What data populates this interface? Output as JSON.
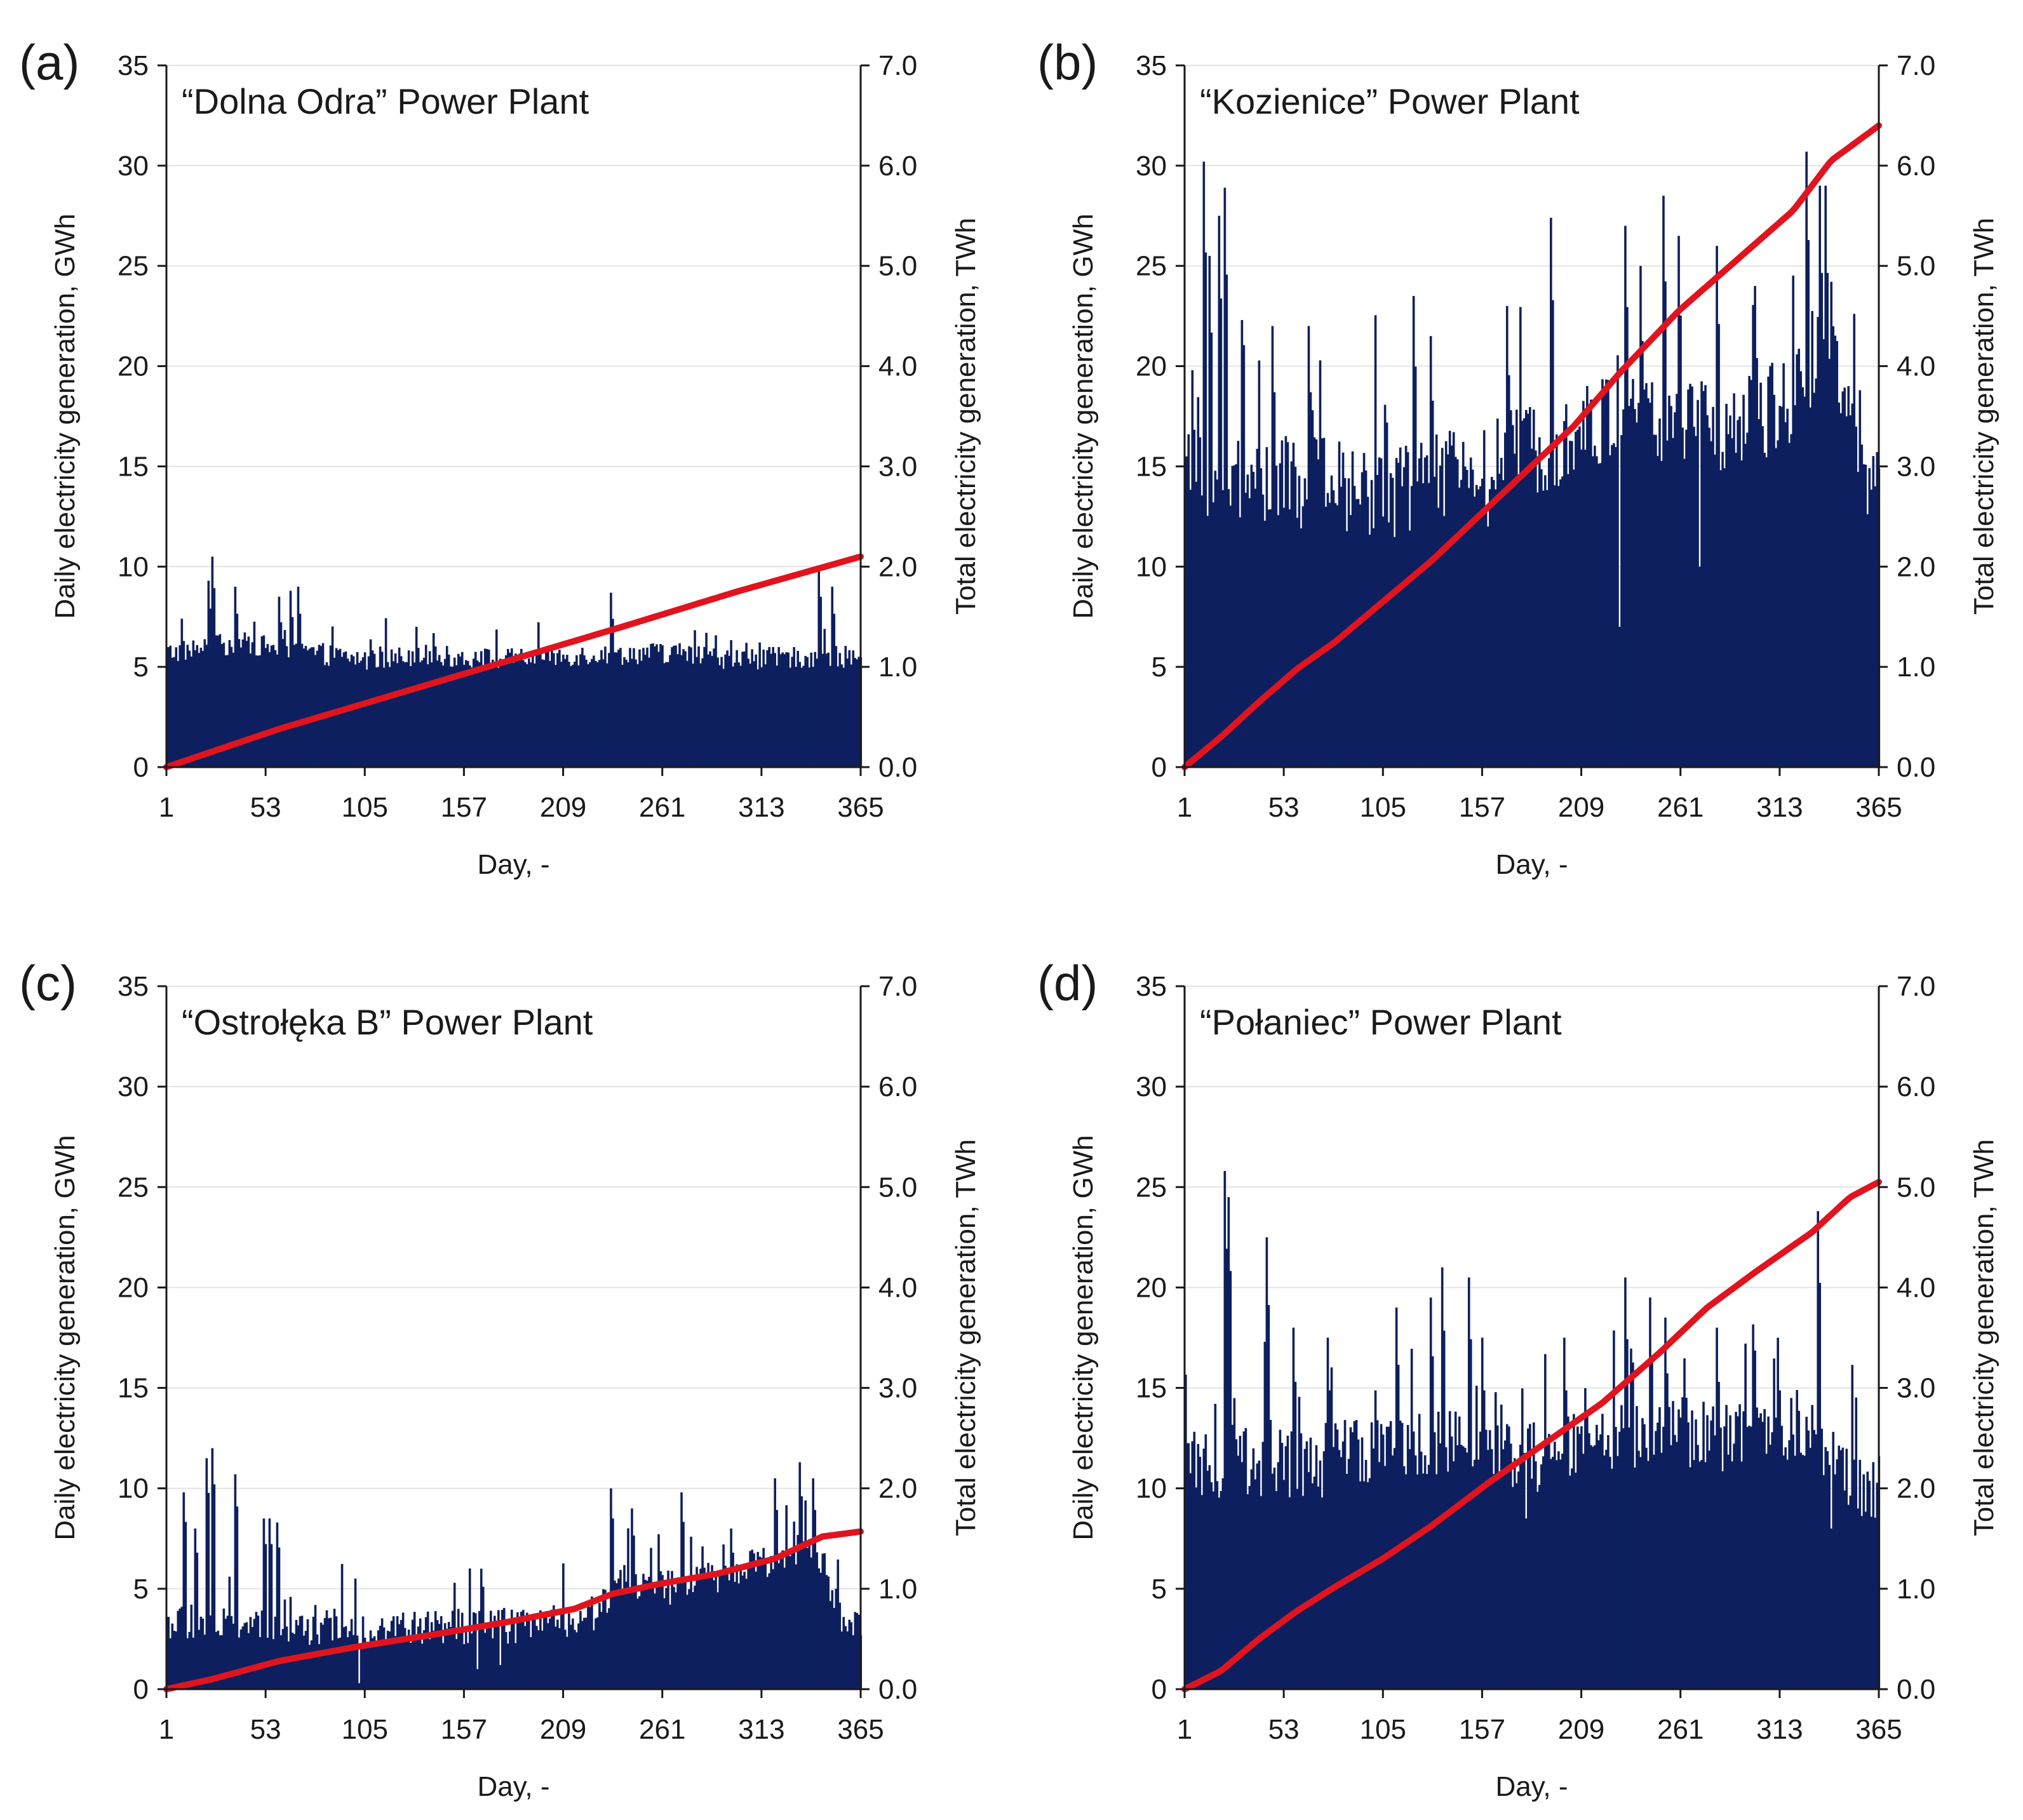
{
  "colors": {
    "bar": "#0d1f5e",
    "line": "#e0141e",
    "axis": "#1a1a1a",
    "grid": "#e4e4e4"
  },
  "chart_data": [
    {
      "panel_label": "(a)",
      "title": "“Dolna Odra” Power Plant",
      "type": "bar",
      "xlabel": "Day, -",
      "ylabel": "Daily electricity generation, GWh",
      "y2label": "Total electricity generation, TWh",
      "xlim": [
        1,
        365
      ],
      "x_ticks": [
        "1",
        "53",
        "105",
        "157",
        "209",
        "261",
        "313",
        "365"
      ],
      "ylim": [
        0,
        35
      ],
      "y_ticks": [
        "0",
        "5",
        "10",
        "15",
        "20",
        "25",
        "30",
        "35"
      ],
      "y2lim": [
        0,
        7.0
      ],
      "y2_ticks": [
        "0.0",
        "1.0",
        "2.0",
        "3.0",
        "4.0",
        "5.0",
        "6.0",
        "7.0"
      ],
      "grid": true,
      "daily_profile": {
        "base": [
          [
            1,
            5.7
          ],
          [
            40,
            6.2
          ],
          [
            70,
            5.8
          ],
          [
            110,
            5.3
          ],
          [
            130,
            5.6
          ],
          [
            150,
            5.5
          ],
          [
            180,
            5.4
          ],
          [
            220,
            5.6
          ],
          [
            260,
            5.7
          ],
          [
            300,
            5.4
          ],
          [
            340,
            5.5
          ],
          [
            365,
            5.5
          ]
        ],
        "noise": 0.55,
        "spikes": [
          [
            23,
            9.3
          ],
          [
            25,
            10.5
          ],
          [
            37,
            9.0
          ],
          [
            60,
            8.5
          ],
          [
            66,
            8.8
          ],
          [
            70,
            9.0
          ],
          [
            132,
            7.0
          ],
          [
            234,
            8.7
          ],
          [
            305,
            6.2
          ],
          [
            343,
            10.0
          ],
          [
            350,
            9.0
          ]
        ],
        "dips": []
      },
      "series": [
        {
          "name": "Daily electricity generation",
          "axis": "left",
          "type": "bar"
        },
        {
          "name": "Total electricity generation",
          "axis": "right",
          "type": "line",
          "points": [
            [
              1,
              0.0
            ],
            [
              60,
              0.38
            ],
            [
              120,
              0.72
            ],
            [
              180,
              1.06
            ],
            [
              240,
              1.4
            ],
            [
              300,
              1.75
            ],
            [
              365,
              2.1
            ]
          ]
        }
      ]
    },
    {
      "panel_label": "(b)",
      "title": "“Kozienice” Power Plant",
      "type": "bar",
      "xlabel": "Day, -",
      "ylabel": "Daily electricity generation, GWh",
      "y2label": "Total electricity generation, TWh",
      "xlim": [
        1,
        365
      ],
      "x_ticks": [
        "1",
        "53",
        "105",
        "157",
        "209",
        "261",
        "313",
        "365"
      ],
      "ylim": [
        0,
        35
      ],
      "y_ticks": [
        "0",
        "5",
        "10",
        "15",
        "20",
        "25",
        "30",
        "35"
      ],
      "y2lim": [
        0,
        7.0
      ],
      "y2_ticks": [
        "0.0",
        "1.0",
        "2.0",
        "3.0",
        "4.0",
        "5.0",
        "6.0",
        "7.0"
      ],
      "grid": true,
      "daily_profile": {
        "base": [
          [
            1,
            14.5
          ],
          [
            40,
            14.2
          ],
          [
            80,
            14.0
          ],
          [
            110,
            13.8
          ],
          [
            140,
            14.5
          ],
          [
            170,
            15.5
          ],
          [
            200,
            16.5
          ],
          [
            230,
            17.5
          ],
          [
            260,
            17.0
          ],
          [
            290,
            17.0
          ],
          [
            320,
            18.5
          ],
          [
            340,
            22
          ],
          [
            355,
            14.5
          ],
          [
            365,
            13.5
          ]
        ],
        "noise": 2.4,
        "spikes": [
          [
            5,
            19.8
          ],
          [
            11,
            30.2
          ],
          [
            14,
            25.5
          ],
          [
            19,
            27.5
          ],
          [
            22,
            28.9
          ],
          [
            31,
            22.3
          ],
          [
            47,
            22.0
          ],
          [
            66,
            22.0
          ],
          [
            121,
            23.5
          ],
          [
            130,
            21.5
          ],
          [
            170,
            23.0
          ],
          [
            193,
            27.4
          ],
          [
            232,
            27.0
          ],
          [
            240,
            25.0
          ],
          [
            252,
            28.5
          ],
          [
            260,
            26.5
          ],
          [
            280,
            26.0
          ],
          [
            300,
            24.0
          ],
          [
            327,
            30.7
          ],
          [
            334,
            29.0
          ],
          [
            337,
            29.0
          ]
        ],
        "dips": [
          [
            229,
            7.0
          ],
          [
            271,
            10.0
          ],
          [
            160,
            12.0
          ]
        ]
      },
      "series": [
        {
          "name": "Daily electricity generation",
          "axis": "left",
          "type": "bar"
        },
        {
          "name": "Total electricity generation",
          "axis": "right",
          "type": "line",
          "points": [
            [
              1,
              0.0
            ],
            [
              20,
              0.3
            ],
            [
              40,
              0.65
            ],
            [
              60,
              0.98
            ],
            [
              80,
              1.25
            ],
            [
              105,
              1.65
            ],
            [
              130,
              2.05
            ],
            [
              155,
              2.5
            ],
            [
              180,
              2.95
            ],
            [
              205,
              3.4
            ],
            [
              230,
              3.95
            ],
            [
              260,
              4.55
            ],
            [
              290,
              5.05
            ],
            [
              320,
              5.55
            ],
            [
              340,
              6.05
            ],
            [
              365,
              6.4
            ]
          ]
        }
      ]
    },
    {
      "panel_label": "(c)",
      "title": "“Ostrołęka B” Power Plant",
      "type": "bar",
      "xlabel": "Day, -",
      "ylabel": "Daily electricity generation, GWh",
      "y2label": "Total electricity generation, TWh",
      "xlim": [
        1,
        365
      ],
      "x_ticks": [
        "1",
        "53",
        "105",
        "157",
        "209",
        "261",
        "313",
        "365"
      ],
      "ylim": [
        0,
        35
      ],
      "y_ticks": [
        "0",
        "5",
        "10",
        "15",
        "20",
        "25",
        "30",
        "35"
      ],
      "y2lim": [
        0,
        7.0
      ],
      "y2_ticks": [
        "0.0",
        "1.0",
        "2.0",
        "3.0",
        "4.0",
        "5.0",
        "6.0",
        "7.0"
      ],
      "grid": true,
      "daily_profile": {
        "base": [
          [
            1,
            3.3
          ],
          [
            50,
            3.1
          ],
          [
            100,
            3.0
          ],
          [
            150,
            3.1
          ],
          [
            200,
            3.2
          ],
          [
            225,
            3.8
          ],
          [
            240,
            5.5
          ],
          [
            260,
            5.0
          ],
          [
            290,
            5.5
          ],
          [
            320,
            6.5
          ],
          [
            340,
            7.5
          ],
          [
            355,
            3.5
          ],
          [
            365,
            3.0
          ]
        ],
        "noise": 0.9,
        "spikes": [
          [
            10,
            9.8
          ],
          [
            16,
            8.0
          ],
          [
            22,
            11.5
          ],
          [
            25,
            12.0
          ],
          [
            37,
            10.7
          ],
          [
            52,
            8.5
          ],
          [
            55,
            8.5
          ],
          [
            59,
            8.3
          ],
          [
            166,
            6.0
          ],
          [
            234,
            10.0
          ],
          [
            245,
            9.0
          ],
          [
            271,
            9.8
          ],
          [
            297,
            8.0
          ],
          [
            320,
            10.5
          ],
          [
            333,
            11.3
          ],
          [
            340,
            10.5
          ]
        ],
        "dips": [
          [
            102,
            0.3
          ],
          [
            164,
            1.0
          ],
          [
            176,
            1.2
          ]
        ]
      },
      "series": [
        {
          "name": "Daily electricity generation",
          "axis": "left",
          "type": "bar"
        },
        {
          "name": "Total electricity generation",
          "axis": "right",
          "type": "line",
          "points": [
            [
              1,
              0.0
            ],
            [
              25,
              0.1
            ],
            [
              60,
              0.28
            ],
            [
              100,
              0.42
            ],
            [
              140,
              0.54
            ],
            [
              180,
              0.67
            ],
            [
              215,
              0.8
            ],
            [
              235,
              0.95
            ],
            [
              260,
              1.05
            ],
            [
              290,
              1.15
            ],
            [
              320,
              1.3
            ],
            [
              345,
              1.52
            ],
            [
              365,
              1.57
            ]
          ]
        }
      ]
    },
    {
      "panel_label": "(d)",
      "title": "“Połaniec” Power Plant",
      "type": "bar",
      "xlabel": "Day, -",
      "ylabel": "Daily electricity generation, GWh",
      "y2label": "Total electricity generation, TWh",
      "xlim": [
        1,
        365
      ],
      "x_ticks": [
        "1",
        "53",
        "105",
        "157",
        "209",
        "261",
        "313",
        "365"
      ],
      "ylim": [
        0,
        35
      ],
      "y_ticks": [
        "0",
        "5",
        "10",
        "15",
        "20",
        "25",
        "30",
        "35"
      ],
      "y2lim": [
        0,
        7.0
      ],
      "y2_ticks": [
        "0.0",
        "1.0",
        "2.0",
        "3.0",
        "4.0",
        "5.0",
        "6.0",
        "7.0"
      ],
      "grid": true,
      "daily_profile": {
        "base": [
          [
            1,
            11.0
          ],
          [
            30,
            11.5
          ],
          [
            60,
            11.0
          ],
          [
            100,
            12.0
          ],
          [
            130,
            12.5
          ],
          [
            160,
            12.0
          ],
          [
            190,
            11.5
          ],
          [
            220,
            12.5
          ],
          [
            250,
            13.0
          ],
          [
            280,
            12.5
          ],
          [
            310,
            12.5
          ],
          [
            330,
            13.5
          ],
          [
            345,
            10.5
          ],
          [
            365,
            10.0
          ]
        ],
        "noise": 1.8,
        "spikes": [
          [
            22,
            25.8
          ],
          [
            24,
            24.5
          ],
          [
            44,
            22.5
          ],
          [
            58,
            18.0
          ],
          [
            76,
            17.5
          ],
          [
            112,
            19.0
          ],
          [
            130,
            19.5
          ],
          [
            136,
            21.0
          ],
          [
            150,
            20.5
          ],
          [
            157,
            17.5
          ],
          [
            200,
            17.5
          ],
          [
            232,
            20.5
          ],
          [
            245,
            19.5
          ],
          [
            253,
            18.5
          ],
          [
            280,
            18.0
          ],
          [
            300,
            16.5
          ],
          [
            312,
            17.5
          ],
          [
            333,
            23.8
          ]
        ],
        "dips": [
          [
            180,
            8.5
          ],
          [
            340,
            8.0
          ]
        ]
      },
      "series": [
        {
          "name": "Daily electricity generation",
          "axis": "left",
          "type": "bar"
        },
        {
          "name": "Total electricity generation",
          "axis": "right",
          "type": "line",
          "points": [
            [
              1,
              0.0
            ],
            [
              20,
              0.18
            ],
            [
              40,
              0.5
            ],
            [
              60,
              0.78
            ],
            [
              80,
              1.02
            ],
            [
              105,
              1.3
            ],
            [
              130,
              1.62
            ],
            [
              160,
              2.05
            ],
            [
              190,
              2.45
            ],
            [
              220,
              2.85
            ],
            [
              250,
              3.35
            ],
            [
              275,
              3.8
            ],
            [
              300,
              4.15
            ],
            [
              330,
              4.55
            ],
            [
              350,
              4.9
            ],
            [
              365,
              5.05
            ]
          ]
        }
      ]
    }
  ]
}
